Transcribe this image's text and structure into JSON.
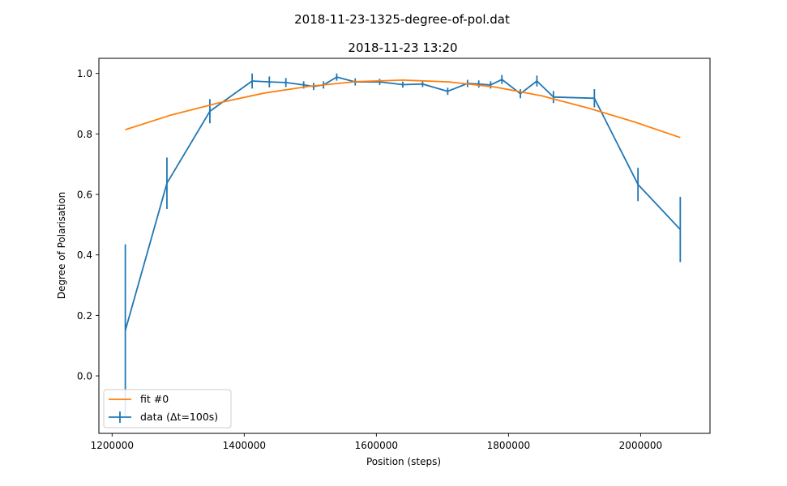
{
  "chart_data": {
    "type": "line",
    "suptitle": "2018-11-23-1325-degree-of-pol.dat",
    "title": "2018-11-23 13:20",
    "xlabel": "Position (steps)",
    "ylabel": "Degree of Polarisation",
    "xlim": [
      1180000,
      2105000
    ],
    "ylim": [
      -0.19,
      1.05
    ],
    "xticks": [
      1200000,
      1400000,
      1600000,
      1800000,
      2000000
    ],
    "xtick_labels": [
      "1200000",
      "1400000",
      "1600000",
      "1800000",
      "2000000"
    ],
    "yticks": [
      0.0,
      0.2,
      0.4,
      0.6,
      0.8,
      1.0
    ],
    "ytick_labels": [
      "0.0",
      "0.2",
      "0.4",
      "0.6",
      "0.8",
      "1.0"
    ],
    "grid": false,
    "legend": {
      "placement": "lower-left",
      "entries": [
        "fit #0",
        "data (Δt=100s)"
      ]
    },
    "colors": {
      "fit": "#ff7f0e",
      "data": "#1f77b4"
    },
    "series": [
      {
        "name": "fit #0",
        "kind": "line",
        "color": "#ff7f0e",
        "x": [
          1220000,
          1290000,
          1360000,
          1430000,
          1500000,
          1570000,
          1640000,
          1710000,
          1780000,
          1850000,
          1920000,
          1990000,
          2060000
        ],
        "y": [
          0.814,
          0.863,
          0.902,
          0.935,
          0.958,
          0.973,
          0.978,
          0.972,
          0.955,
          0.926,
          0.886,
          0.84,
          0.788
        ]
      },
      {
        "name": "data (Δt=100s)",
        "kind": "errorbar",
        "color": "#1f77b4",
        "x": [
          1220000,
          1283000,
          1348000,
          1412000,
          1438000,
          1463000,
          1490000,
          1505000,
          1520000,
          1540000,
          1568000,
          1605000,
          1640000,
          1670000,
          1708000,
          1738000,
          1755000,
          1773000,
          1790000,
          1818000,
          1843000,
          1868000,
          1930000,
          1996000,
          2060000
        ],
        "y": [
          0.15,
          0.637,
          0.875,
          0.975,
          0.972,
          0.97,
          0.962,
          0.957,
          0.962,
          0.988,
          0.972,
          0.972,
          0.963,
          0.965,
          0.941,
          0.967,
          0.965,
          0.962,
          0.98,
          0.933,
          0.975,
          0.922,
          0.918,
          0.633,
          0.484
        ],
        "yerr": [
          0.285,
          0.085,
          0.04,
          0.025,
          0.018,
          0.015,
          0.012,
          0.012,
          0.012,
          0.012,
          0.012,
          0.01,
          0.01,
          0.01,
          0.012,
          0.012,
          0.012,
          0.012,
          0.015,
          0.015,
          0.018,
          0.02,
          0.03,
          0.055,
          0.108
        ]
      }
    ]
  }
}
